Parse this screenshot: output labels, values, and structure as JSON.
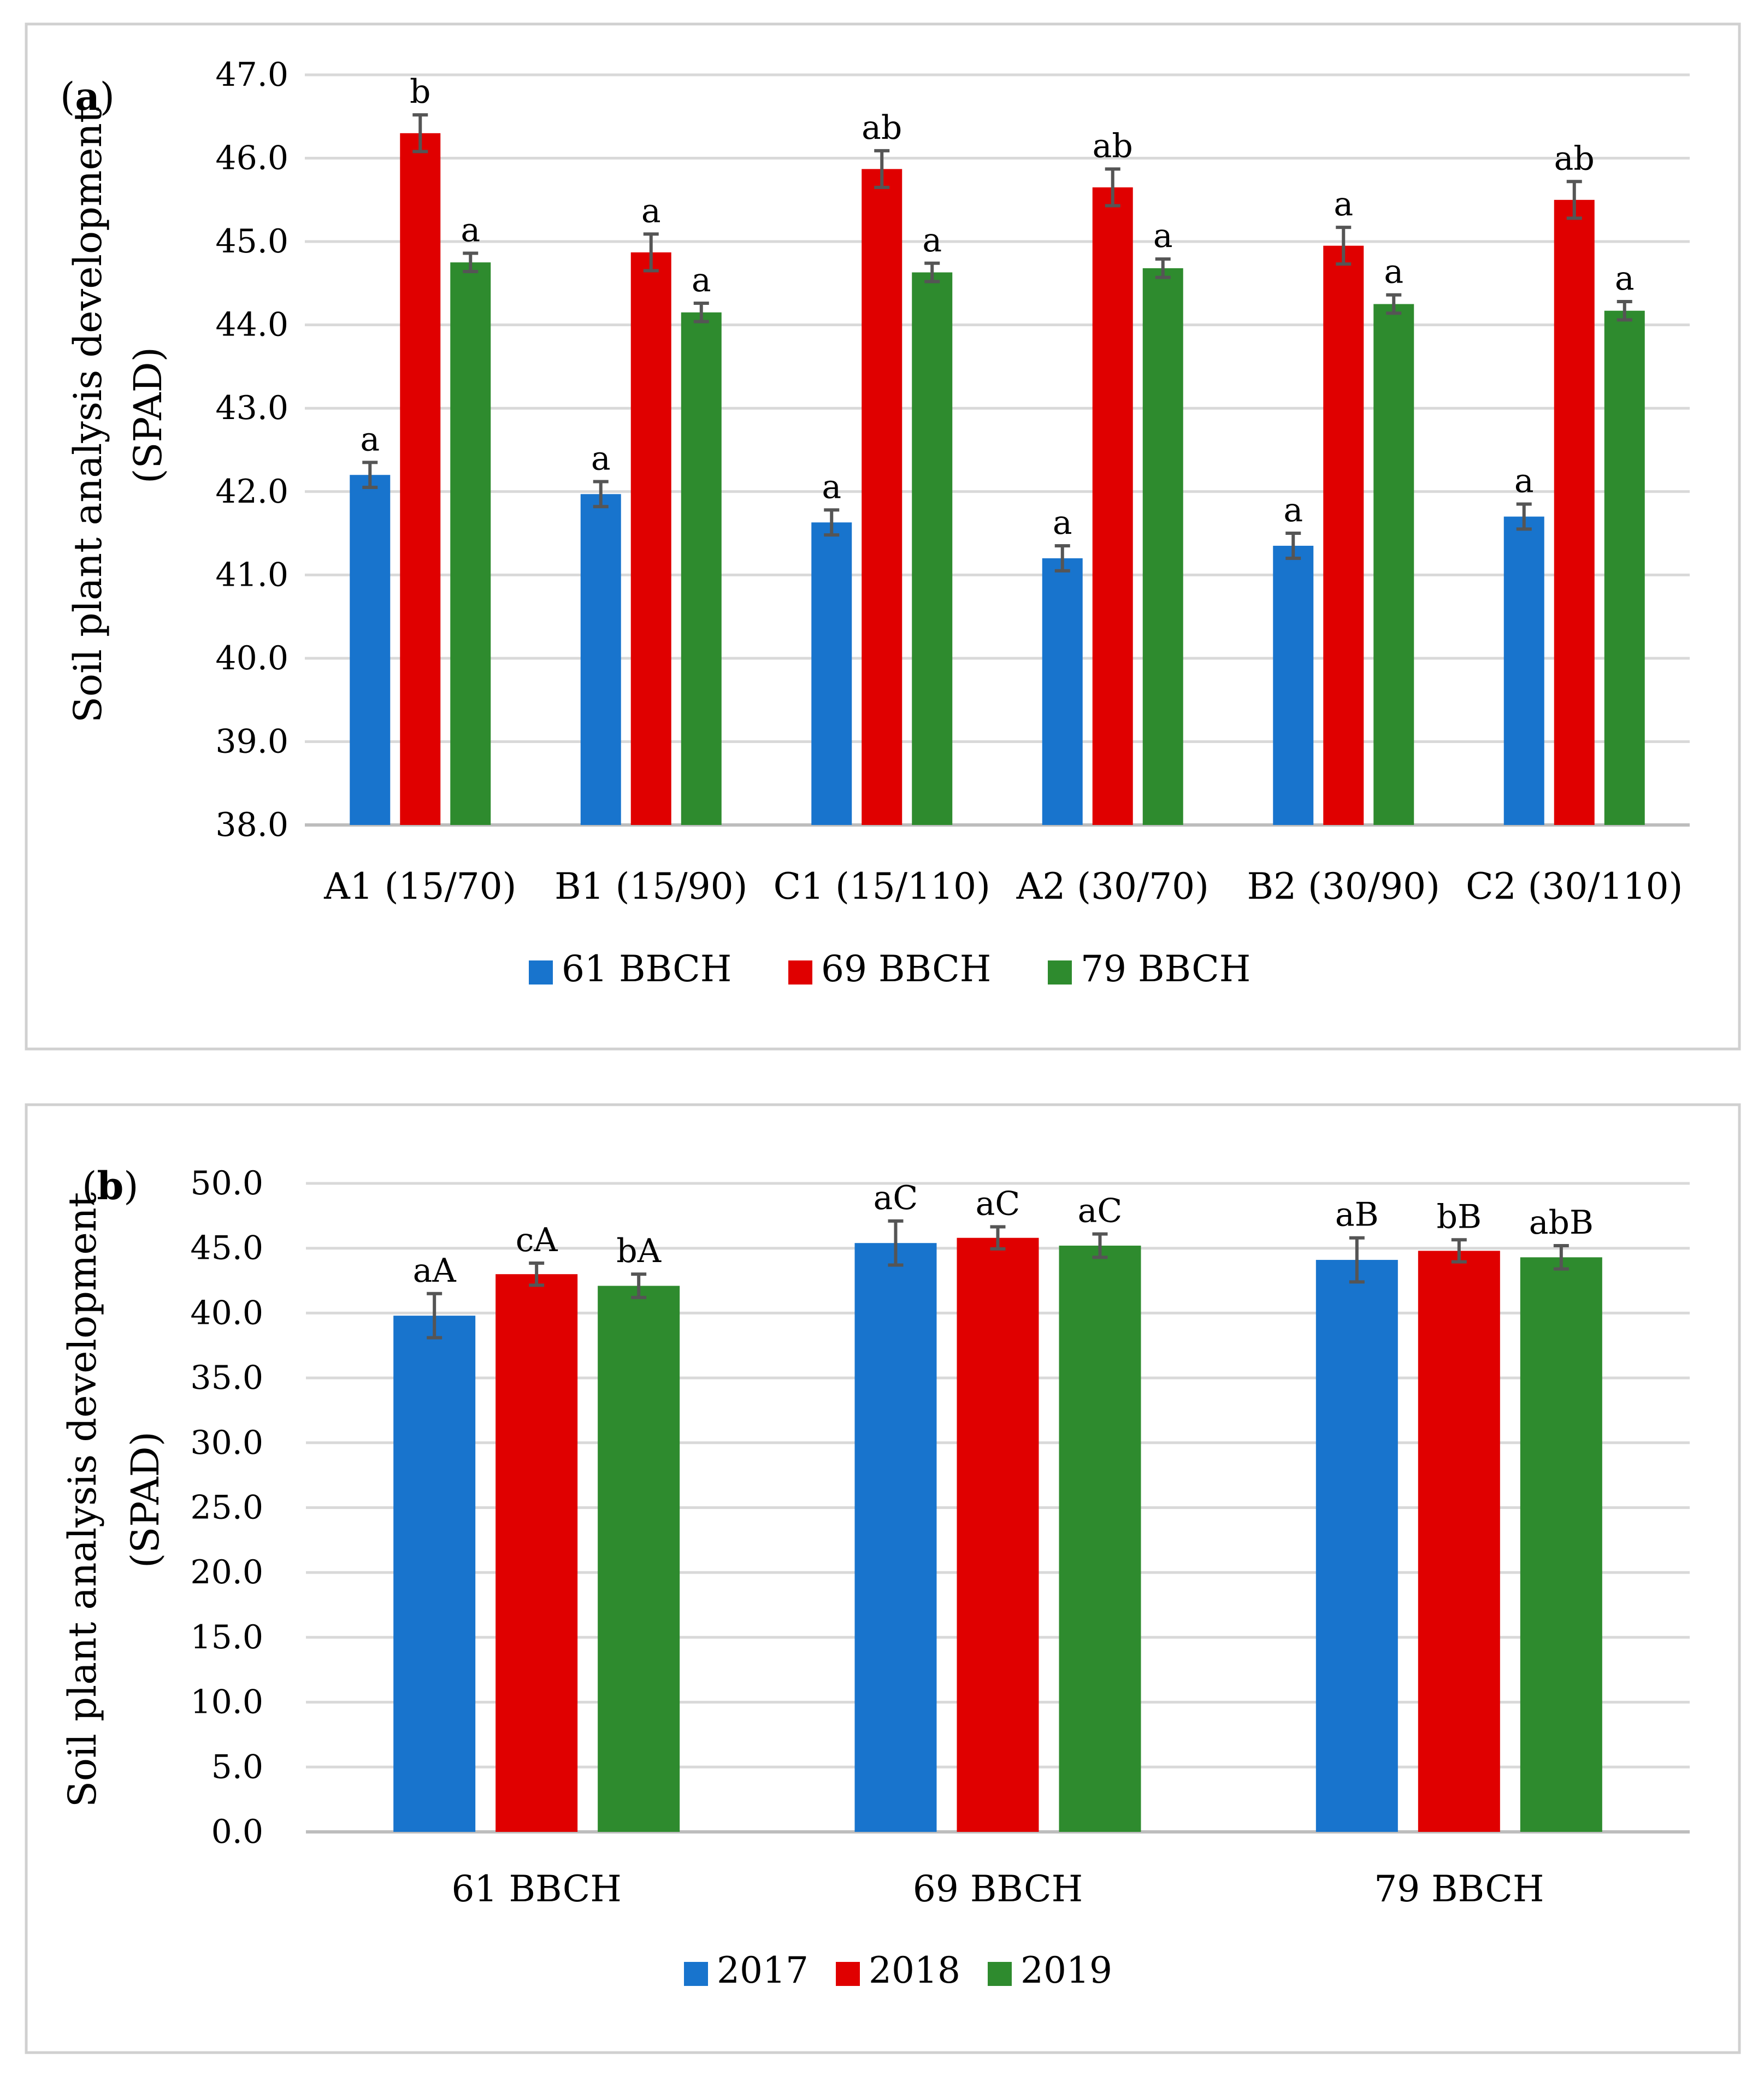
{
  "chart_data": [
    {
      "type": "bar",
      "panel_label": "a",
      "ylabel": "Soil plant analysis development",
      "ylabel_unit": "(SPAD)",
      "ylim": [
        38.0,
        47.0
      ],
      "yticks": [
        "38.0",
        "39.0",
        "40.0",
        "41.0",
        "42.0",
        "43.0",
        "44.0",
        "45.0",
        "46.0",
        "47.0"
      ],
      "grid": true,
      "legend_position": "bottom",
      "categories": [
        "A1 (15/70)",
        "B1 (15/90)",
        "C1 (15/110)",
        "A2 (30/70)",
        "B2 (30/90)",
        "C2 (30/110)"
      ],
      "series": [
        {
          "name": "61 BBCH",
          "color": "#1874CD",
          "values": [
            42.2,
            41.97,
            41.63,
            41.2,
            41.35,
            41.7
          ],
          "errors": [
            0.15,
            0.15,
            0.15,
            0.15,
            0.15,
            0.15
          ],
          "labels": [
            "a",
            "a",
            "a",
            "a",
            "a",
            "a"
          ]
        },
        {
          "name": "69 BBCH",
          "color": "#E00000",
          "values": [
            46.3,
            44.87,
            45.87,
            45.65,
            44.95,
            45.5
          ],
          "errors": [
            0.22,
            0.22,
            0.22,
            0.22,
            0.22,
            0.22
          ],
          "labels": [
            "b",
            "a",
            "ab",
            "ab",
            "a",
            "ab"
          ]
        },
        {
          "name": "79 BBCH",
          "color": "#2E8B2E",
          "values": [
            44.75,
            44.15,
            44.63,
            44.68,
            44.25,
            44.17
          ],
          "errors": [
            0.11,
            0.11,
            0.11,
            0.11,
            0.11,
            0.11
          ],
          "labels": [
            "a",
            "a",
            "a",
            "a",
            "a",
            "a"
          ]
        }
      ]
    },
    {
      "type": "bar",
      "panel_label": "b",
      "ylabel": "Soil plant analysis development",
      "ylabel_unit": "(SPAD)",
      "ylim": [
        0.0,
        50.0
      ],
      "yticks": [
        "0.0",
        "5.0",
        "10.0",
        "15.0",
        "20.0",
        "25.0",
        "30.0",
        "35.0",
        "40.0",
        "45.0",
        "50.0"
      ],
      "grid": true,
      "legend_position": "bottom",
      "categories": [
        "61 BBCH",
        "69 BBCH",
        "79 BBCH"
      ],
      "series": [
        {
          "name": "2017",
          "color": "#1874CD",
          "values": [
            39.8,
            45.4,
            44.1
          ],
          "errors": [
            1.7,
            1.7,
            1.7
          ],
          "labels": [
            "aA",
            "aC",
            "aB"
          ]
        },
        {
          "name": "2018",
          "color": "#E00000",
          "values": [
            43.0,
            45.8,
            44.8
          ],
          "errors": [
            0.85,
            0.85,
            0.85
          ],
          "labels": [
            "cA",
            "aC",
            "bB"
          ]
        },
        {
          "name": "2019",
          "color": "#2E8B2E",
          "values": [
            42.1,
            45.2,
            44.3
          ],
          "errors": [
            0.9,
            0.9,
            0.9
          ],
          "labels": [
            "bA",
            "aC",
            "abB"
          ]
        }
      ]
    }
  ]
}
